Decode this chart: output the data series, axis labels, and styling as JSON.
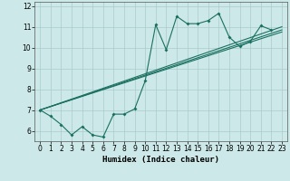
{
  "title": "",
  "xlabel": "Humidex (Indice chaleur)",
  "bg_color": "#cce8e8",
  "grid_color": "#aacaca",
  "line_color": "#1a7060",
  "xlim": [
    -0.5,
    23.5
  ],
  "ylim": [
    5.5,
    12.2
  ],
  "xticks": [
    0,
    1,
    2,
    3,
    4,
    5,
    6,
    7,
    8,
    9,
    10,
    11,
    12,
    13,
    14,
    15,
    16,
    17,
    18,
    19,
    20,
    21,
    22,
    23
  ],
  "yticks": [
    6,
    7,
    8,
    9,
    10,
    11,
    12
  ],
  "line1_x": [
    0,
    1,
    2,
    3,
    4,
    5,
    6,
    7,
    8,
    9,
    10,
    11,
    12,
    13,
    14,
    15,
    16,
    17,
    18,
    19,
    20,
    21,
    22
  ],
  "line1_y": [
    7.0,
    6.7,
    6.3,
    5.8,
    6.2,
    5.8,
    5.7,
    6.8,
    6.8,
    7.05,
    8.4,
    11.1,
    9.9,
    11.5,
    11.15,
    11.15,
    11.3,
    11.65,
    10.5,
    10.05,
    10.3,
    11.05,
    10.85
  ],
  "line2_x": [
    0,
    23
  ],
  "line2_y": [
    7.0,
    11.0
  ],
  "line3_x": [
    0,
    23
  ],
  "line3_y": [
    7.0,
    10.85
  ],
  "line4_x": [
    0,
    23
  ],
  "line4_y": [
    7.0,
    10.75
  ],
  "xlabel_fontsize": 6.5,
  "tick_fontsize": 5.5
}
